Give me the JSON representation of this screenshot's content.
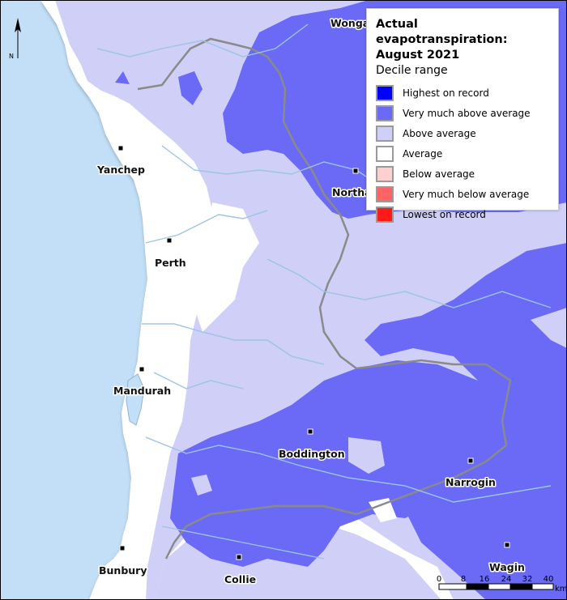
{
  "legend": {
    "title_line1": "Actual evapotranspiration:",
    "title_line2": "August 2021",
    "subtitle": "Decile range",
    "items": [
      {
        "label": "Highest on record",
        "color": "#0000ff"
      },
      {
        "label": "Very much above average",
        "color": "#6a6af7"
      },
      {
        "label": "Above average",
        "color": "#cfcff7"
      },
      {
        "label": "Average",
        "color": "#ffffff"
      },
      {
        "label": "Below average",
        "color": "#ffd0d0"
      },
      {
        "label": "Very much below average",
        "color": "#ff6464"
      },
      {
        "label": "Lowest on record",
        "color": "#ff1a1a"
      }
    ]
  },
  "towns": {
    "wongan": "Wonga",
    "yanchep": "Yanchep",
    "northam": "Northa",
    "perth": "Perth",
    "mandurah": "Mandurah",
    "boddington": "Boddington",
    "narrogin": "Narrogin",
    "bunbury": "Bunbury",
    "collie": "Collie",
    "wagin": "Wagin"
  },
  "north_arrow": {
    "label": "N"
  },
  "scale_bar": {
    "ticks": [
      "0",
      "8",
      "16",
      "24",
      "32",
      "40"
    ],
    "unit": "km"
  },
  "colors": {
    "ocean": "#c2dff7",
    "land_average": "#ffffff",
    "above_average": "#cfcff7",
    "very_much_above": "#6a6af7",
    "highest": "#0000ff",
    "rivers": "#9cc4e4"
  }
}
